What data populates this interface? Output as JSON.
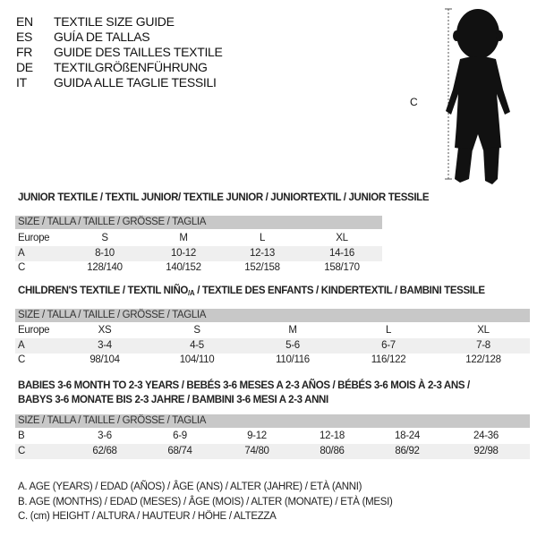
{
  "guide_titles": [
    {
      "code": "EN",
      "text": "TEXTILE SIZE GUIDE"
    },
    {
      "code": "ES",
      "text": "GUÍA DE TALLAS"
    },
    {
      "code": "FR",
      "text": "GUIDE DES TAILLES TEXTILE"
    },
    {
      "code": "DE",
      "text": "TEXTILGRÖßENFÜHRUNG"
    },
    {
      "code": "IT",
      "text": "GUIDA ALLE TAGLIE TESSILI"
    }
  ],
  "figure": {
    "measure_label": "C"
  },
  "junior": {
    "title": "JUNIOR TEXTILE / TEXTIL JUNIOR/ TEXTILE JUNIOR / JUNIORTEXTIL / JUNIOR TESSILE",
    "header": "SIZE / TALLA / TAILLE / GRÖSSE / TAGLIA",
    "rows": [
      {
        "label": "Europe",
        "cells": [
          "S",
          "M",
          "L",
          "XL"
        ]
      },
      {
        "label": "A",
        "cells": [
          "8-10",
          "10-12",
          "12-13",
          "14-16"
        ]
      },
      {
        "label": "C",
        "cells": [
          "128/140",
          "140/152",
          "152/158",
          "158/170"
        ]
      }
    ]
  },
  "children": {
    "title_a": "CHILDREN'S TEXTILE / TEXTIL NIÑO",
    "title_sub": "/A",
    "title_b": " / TEXTILE DES ENFANTS / KINDERTEXTIL / BAMBINI TESSILE",
    "header": "SIZE / TALLA / TAILLE / GRÖSSE / TAGLIA",
    "rows": [
      {
        "label": "Europe",
        "cells": [
          "XS",
          "S",
          "M",
          "L",
          "XL"
        ]
      },
      {
        "label": "A",
        "cells": [
          "3-4",
          "4-5",
          "5-6",
          "6-7",
          "7-8"
        ]
      },
      {
        "label": "C",
        "cells": [
          "98/104",
          "104/110",
          "110/116",
          "116/122",
          "122/128"
        ]
      }
    ]
  },
  "babies": {
    "title_line1": "BABIES 3-6 MONTH TO 2-3 YEARS / BEBÉS 3-6 MESES A 2-3 AÑOS / BÉBÉS 3-6 MOIS À 2-3 ANS /",
    "title_line2": "BABYS 3-6 MONATE BIS 2-3 JAHRE / BAMBINI 3-6 MESI A 2-3 ANNI",
    "header": "SIZE / TALLA / TAILLE / GRÖSSE / TAGLIA",
    "rows": [
      {
        "label": "B",
        "cells": [
          "3-6",
          "6-9",
          "9-12",
          "12-18",
          "18-24",
          "24-36"
        ]
      },
      {
        "label": "C",
        "cells": [
          "62/68",
          "68/74",
          "74/80",
          "80/86",
          "86/92",
          "92/98"
        ]
      }
    ]
  },
  "legend": [
    "A. AGE (YEARS) / EDAD (AÑOS) / ÂGE (ANS) / ALTER (JAHRE) / ETÀ (ANNI)",
    "B. AGE (MONTHS) / EDAD (MESES) / ÂGE (MOIS) / ALTER (MONATE) / ETÀ (MESI)",
    "C. (cm) HEIGHT / ALTURA / HAUTEUR / HÖHE / ALTEZZA"
  ],
  "colors": {
    "header_bg": "#c8c8c8",
    "row_shade": "#efefef",
    "text": "#111111"
  }
}
